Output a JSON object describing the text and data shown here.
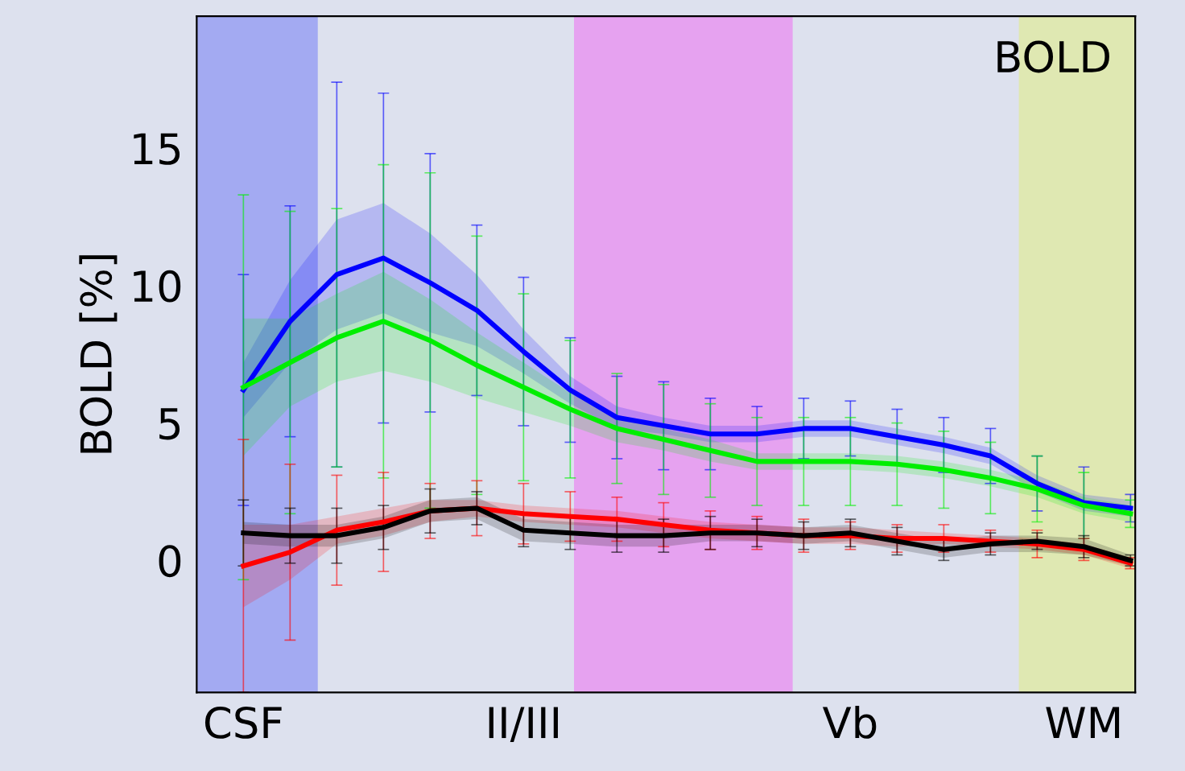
{
  "chart_data": {
    "type": "line",
    "ylabel": "BOLD [%]",
    "annotations": [
      "BOLD"
    ],
    "categories": [
      "CSF",
      null,
      null,
      null,
      null,
      null,
      "II/III",
      null,
      null,
      null,
      null,
      null,
      null,
      "Vb",
      null,
      null,
      null,
      null,
      "WM",
      null
    ],
    "ylim": [
      -4.8,
      19.8
    ],
    "yticks": [
      0,
      5,
      10,
      15
    ],
    "grid": false,
    "legend": false,
    "marker": "none",
    "line_style": "solid",
    "series": [
      {
        "color": "#0000ff",
        "values": [
          6.2,
          8.7,
          10.4,
          11.0,
          10.1,
          9.1,
          7.6,
          6.2,
          5.2,
          4.9,
          4.6,
          4.6,
          4.8,
          4.8,
          4.5,
          4.2,
          3.8,
          2.8,
          2.1,
          1.9
        ],
        "errors": [
          4.2,
          4.2,
          7.0,
          6.0,
          4.7,
          3.1,
          2.7,
          1.9,
          1.5,
          1.6,
          1.3,
          1.0,
          1.1,
          1.0,
          1.0,
          1.0,
          1.0,
          1.0,
          1.3,
          0.5
        ],
        "lower": [
          5.2,
          7.2,
          8.4,
          9.0,
          8.3,
          7.8,
          6.8,
          5.7,
          4.8,
          4.6,
          4.3,
          4.3,
          4.5,
          4.5,
          4.2,
          3.9,
          3.5,
          2.5,
          1.8,
          1.6
        ],
        "upper": [
          7.2,
          10.2,
          12.4,
          13.0,
          11.9,
          10.4,
          8.4,
          6.7,
          5.6,
          5.2,
          4.9,
          4.9,
          5.1,
          5.1,
          4.8,
          4.5,
          4.1,
          3.1,
          2.4,
          2.2
        ]
      },
      {
        "color": "#00ee00",
        "values": [
          6.3,
          7.2,
          8.1,
          8.7,
          8.0,
          7.1,
          6.3,
          5.5,
          4.8,
          4.4,
          4.0,
          3.6,
          3.6,
          3.6,
          3.5,
          3.3,
          3.0,
          2.6,
          2.0,
          1.7
        ],
        "errors": [
          7.0,
          5.5,
          4.7,
          5.7,
          6.1,
          4.7,
          3.4,
          2.5,
          2.0,
          2.0,
          1.7,
          1.6,
          1.6,
          1.6,
          1.5,
          1.4,
          1.3,
          1.2,
          1.2,
          0.5
        ],
        "lower": [
          3.8,
          5.6,
          6.5,
          6.9,
          6.5,
          5.9,
          5.4,
          4.9,
          4.3,
          4.0,
          3.6,
          3.3,
          3.3,
          3.3,
          3.2,
          3.0,
          2.7,
          2.3,
          1.7,
          1.4
        ],
        "upper": [
          8.8,
          8.8,
          9.7,
          10.5,
          9.5,
          8.3,
          7.2,
          6.1,
          5.3,
          4.8,
          4.4,
          3.9,
          3.9,
          3.9,
          3.8,
          3.6,
          3.3,
          2.9,
          2.3,
          2.0
        ]
      },
      {
        "color": "#ff0000",
        "values": [
          -0.2,
          0.3,
          1.1,
          1.4,
          1.8,
          1.9,
          1.7,
          1.6,
          1.5,
          1.3,
          1.1,
          1.0,
          0.9,
          0.9,
          0.8,
          0.8,
          0.7,
          0.6,
          0.4,
          -0.1
        ],
        "errors": [
          4.6,
          3.2,
          2.0,
          1.8,
          1.0,
          1.0,
          1.1,
          0.9,
          0.8,
          0.8,
          0.7,
          0.6,
          0.6,
          0.5,
          0.5,
          0.5,
          0.4,
          0.5,
          0.4,
          0.2
        ],
        "lower": [
          -1.7,
          -0.7,
          0.6,
          0.9,
          1.4,
          1.6,
          1.4,
          1.3,
          1.2,
          1.0,
          0.8,
          0.7,
          0.6,
          0.6,
          0.5,
          0.6,
          0.5,
          0.4,
          0.2,
          -0.3
        ],
        "upper": [
          1.3,
          1.3,
          1.6,
          1.9,
          2.2,
          2.2,
          2.0,
          1.9,
          1.8,
          1.6,
          1.4,
          1.3,
          1.2,
          1.2,
          1.1,
          1.0,
          0.9,
          0.8,
          0.6,
          0.1
        ]
      },
      {
        "color": "#000000",
        "values": [
          1.0,
          0.9,
          0.9,
          1.2,
          1.8,
          1.9,
          1.1,
          1.0,
          0.9,
          0.9,
          1.0,
          1.0,
          0.9,
          1.0,
          0.7,
          0.4,
          0.6,
          0.7,
          0.5,
          0.0
        ],
        "errors": [
          1.2,
          1.0,
          1.0,
          0.8,
          0.8,
          0.6,
          0.6,
          0.6,
          0.6,
          0.6,
          0.6,
          0.5,
          0.5,
          0.5,
          0.5,
          0.4,
          0.4,
          0.3,
          0.4,
          0.2
        ],
        "lower": [
          0.6,
          0.5,
          0.5,
          0.8,
          1.4,
          1.5,
          0.7,
          0.6,
          0.5,
          0.5,
          0.7,
          0.7,
          0.6,
          0.7,
          0.4,
          0.1,
          0.3,
          0.3,
          0.2,
          -0.2
        ],
        "upper": [
          1.4,
          1.3,
          1.3,
          1.6,
          2.2,
          2.3,
          1.5,
          1.4,
          1.3,
          1.3,
          1.3,
          1.3,
          1.2,
          1.3,
          1.0,
          0.7,
          0.9,
          0.9,
          0.8,
          0.2
        ]
      }
    ]
  }
}
